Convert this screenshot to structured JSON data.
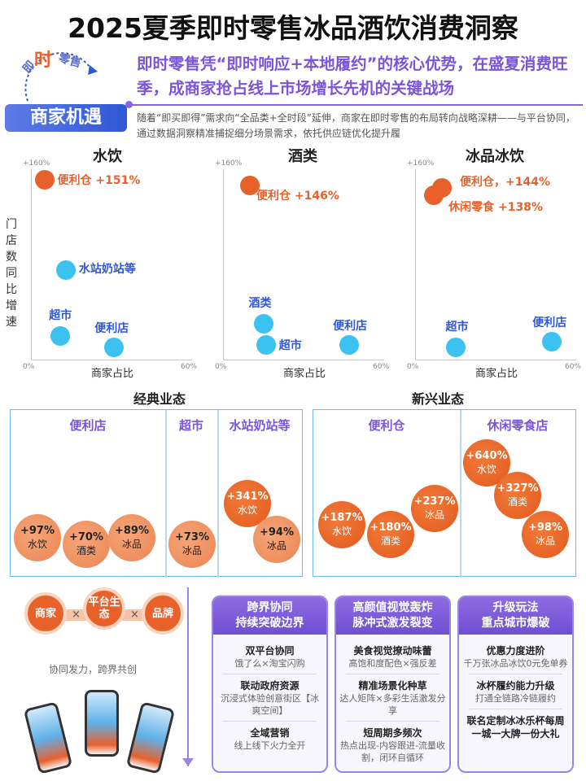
{
  "title": "2025夏季即时零售冰品酒饮消费洞察",
  "logo": {
    "a": "即",
    "b": "时",
    "c": "零售"
  },
  "badge": "商家机遇",
  "headline": "即时零售凭“即时响应+本地履约”的核心优势，在盛夏消费旺季，成商家抢占线上市场增长先机的关键战场",
  "desc": "随着“即买即得”需求向“全品类+全时段”延伸，商家在即时零售的布局转向战略深耕——与平台协同，通过数据洞察精准捕捉细分场景需求，依托供应链优化提升履",
  "ylabel": "门店数同比增速",
  "xlabel": "商家占比",
  "y_top": "+160%",
  "x_min": "0%",
  "x_max": "60%",
  "chart_data": [
    {
      "type": "scatter",
      "title": "水饮",
      "points": [
        {
          "label": "便利仓 +151%",
          "x": 5,
          "y": 151,
          "kind": "orange"
        },
        {
          "label": "水站奶站等",
          "x": 13,
          "y": 75,
          "kind": "blue"
        },
        {
          "label": "超市",
          "x": 11,
          "y": 20,
          "kind": "blue"
        },
        {
          "label": "便利店",
          "x": 31,
          "y": 10,
          "kind": "blue"
        }
      ]
    },
    {
      "type": "scatter",
      "title": "酒类",
      "points": [
        {
          "label": "便利仓 +146%",
          "x": 10,
          "y": 146,
          "kind": "orange"
        },
        {
          "label": "酒类",
          "x": 15,
          "y": 30,
          "kind": "blue"
        },
        {
          "label": "超市",
          "x": 16,
          "y": 12,
          "kind": "blue"
        },
        {
          "label": "便利店",
          "x": 47,
          "y": 12,
          "kind": "blue"
        }
      ]
    },
    {
      "type": "scatter",
      "title": "冰品冰饮",
      "points": [
        {
          "label": "便利仓，+144%",
          "x": 10,
          "y": 144,
          "kind": "orange"
        },
        {
          "label": "休闲零食 +138%",
          "x": 7,
          "y": 138,
          "kind": "orange"
        },
        {
          "label": "超市",
          "x": 15,
          "y": 10,
          "kind": "blue"
        },
        {
          "label": "便利店",
          "x": 51,
          "y": 15,
          "kind": "blue"
        }
      ]
    }
  ],
  "classic": {
    "title": "经典业态",
    "cols": [
      {
        "name": "便利店",
        "items": [
          {
            "pct": "+97%",
            "cat": "水饮"
          },
          {
            "pct": "+70%",
            "cat": "酒类"
          },
          {
            "pct": "+89%",
            "cat": "冰品"
          }
        ]
      },
      {
        "name": "超市",
        "items": [
          {
            "pct": "+73%",
            "cat": "冰品"
          }
        ]
      },
      {
        "name": "水站奶站等",
        "items": [
          {
            "pct": "+341%",
            "cat": "水饮"
          },
          {
            "pct": "+94%",
            "cat": "冰品"
          }
        ]
      }
    ]
  },
  "emerging": {
    "title": "新兴业态",
    "cols": [
      {
        "name": "便利仓",
        "items": [
          {
            "pct": "+187%",
            "cat": "水饮"
          },
          {
            "pct": "+180%",
            "cat": "酒类"
          },
          {
            "pct": "+237%",
            "cat": "冰品"
          }
        ]
      },
      {
        "name": "休闲零食店",
        "items": [
          {
            "pct": "+640%",
            "cat": "水饮"
          },
          {
            "pct": "+327%",
            "cat": "酒类"
          },
          {
            "pct": "+98%",
            "cat": "冰品"
          }
        ]
      }
    ]
  },
  "combo": {
    "a": "商家",
    "b": "平台生态",
    "c": "品牌",
    "x": "×",
    "caption": "协同发力，跨界共创"
  },
  "cards": [
    {
      "head1": "跨界协同",
      "head2": "持续突破边界",
      "items": [
        {
          "t": "双平台协同",
          "d": "饿了么×淘宝闪购"
        },
        {
          "t": "联动政府资源",
          "d": "沉浸式体验创意街区【冰爽空间】"
        },
        {
          "t": "全域营销",
          "d": "线上线下火力全开"
        }
      ]
    },
    {
      "head1": "高颜值视觉轰炸",
      "head2": "脉冲式激发裂变",
      "items": [
        {
          "t": "美食视觉撩动味蕾",
          "d": "高饱和度配色×强反差"
        },
        {
          "t": "精准场景化种草",
          "d": "达人矩阵×多彩生活激发分享"
        },
        {
          "t": "短周期多频次",
          "d": "热点出现-内容跟进-流量收割，闭环自循环"
        }
      ]
    },
    {
      "head1": "升级玩法",
      "head2": "重点城市爆破",
      "items": [
        {
          "t": "优惠力度进阶",
          "d": "千万张冰品冰饮0元免单券"
        },
        {
          "t": "冰杯履约能力升级",
          "d": "打通全链路冷链履约"
        },
        {
          "t": "联名定制冰冰乐杯每周一城一大牌一份大礼",
          "d": ""
        }
      ]
    }
  ]
}
